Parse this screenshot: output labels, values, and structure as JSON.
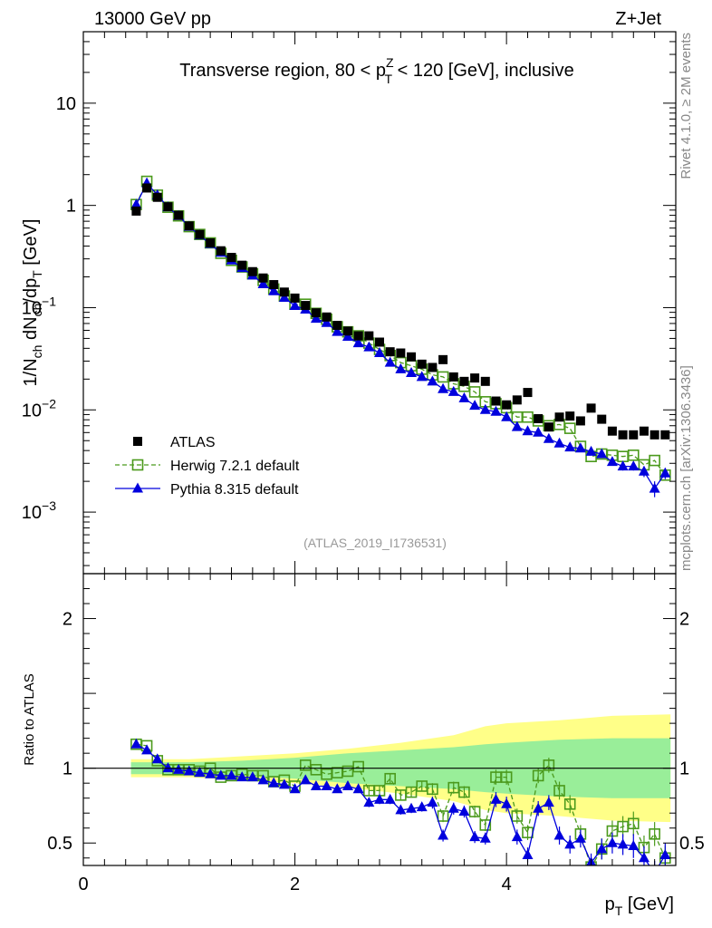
{
  "header": {
    "left": "13000 GeV pp",
    "right": "Z+Jet"
  },
  "side_labels": {
    "top": "Rivet 4.1.0, ≥ 2M events",
    "bottom": "mcplots.cern.ch [arXiv:1306.3436]"
  },
  "colors": {
    "atlas": "#000000",
    "herwig": "#4b9a1c",
    "pythia": "#0000dd",
    "band_inner": "#99ee99",
    "band_outer": "#ffff88",
    "watermark": "#999999"
  },
  "chart_data": [
    {
      "type": "scatter",
      "panel": "main",
      "title_parts": {
        "pre": "Transverse region, 80 < p",
        "sup": "Z",
        "sub": "T",
        "post": " < 120 [GeV], inclusive"
      },
      "ylabel_parts": [
        {
          "t": "1/N"
        },
        {
          "t": "ch",
          "s": "sub"
        },
        {
          "t": " dN"
        },
        {
          "t": "ch",
          "s": "sub"
        },
        {
          "t": "/dp"
        },
        {
          "t": "T",
          "s": "sub"
        },
        {
          "t": " [GeV]"
        }
      ],
      "yscale": "log",
      "ylim": [
        0.00025,
        50
      ],
      "xlim": [
        0,
        5.6
      ],
      "y_ticks": [
        {
          "v": 10,
          "base": "10",
          "exp": ""
        },
        {
          "v": 1,
          "base": "1",
          "exp": ""
        },
        {
          "v": 0.1,
          "base": "10",
          "exp": "−1"
        },
        {
          "v": 0.01,
          "base": "10",
          "exp": "−2"
        },
        {
          "v": 0.001,
          "base": "10",
          "exp": "−3"
        }
      ],
      "watermark": "(ATLAS_2019_I1736531)",
      "legend": {
        "position": "lower-left",
        "entries": [
          {
            "key": "atlas",
            "label": "ATLAS"
          },
          {
            "key": "herwig",
            "label": "Herwig 7.2.1 default"
          },
          {
            "key": "pythia",
            "label": "Pythia 8.315 default"
          }
        ]
      },
      "x": [
        0.5,
        0.6,
        0.7,
        0.8,
        0.9,
        1.0,
        1.1,
        1.2,
        1.3,
        1.4,
        1.5,
        1.6,
        1.7,
        1.8,
        1.9,
        2.0,
        2.1,
        2.2,
        2.3,
        2.4,
        2.5,
        2.6,
        2.7,
        2.8,
        2.9,
        3.0,
        3.1,
        3.2,
        3.3,
        3.4,
        3.5,
        3.6,
        3.7,
        3.8,
        3.9,
        4.0,
        4.1,
        4.2,
        4.3,
        4.4,
        4.5,
        4.6,
        4.7,
        4.8,
        4.9,
        5.0,
        5.1,
        5.2,
        5.3,
        5.4,
        5.5
      ],
      "series": [
        {
          "name": "ATLAS",
          "key": "atlas",
          "marker": "square-filled",
          "values": [
            0.88,
            1.48,
            1.2,
            0.97,
            0.8,
            0.63,
            0.52,
            0.43,
            0.36,
            0.31,
            0.26,
            0.225,
            0.195,
            0.168,
            0.142,
            0.124,
            0.105,
            0.089,
            0.081,
            0.067,
            0.059,
            0.053,
            0.053,
            0.046,
            0.037,
            0.036,
            0.033,
            0.028,
            0.026,
            0.031,
            0.021,
            0.019,
            0.0205,
            0.019,
            0.0122,
            0.0112,
            0.0125,
            0.0148,
            0.0082,
            0.0068,
            0.0085,
            0.0087,
            0.0078,
            0.0104,
            0.0081,
            0.0062,
            0.0057,
            0.0057,
            0.0062,
            0.0057,
            0.0057
          ]
        },
        {
          "name": "Herwig 7.2.1 default",
          "key": "herwig",
          "marker": "square-open",
          "line": "dashed",
          "values": [
            1.02,
            1.72,
            1.26,
            0.96,
            0.79,
            0.62,
            0.52,
            0.43,
            0.34,
            0.29,
            0.25,
            0.214,
            0.185,
            0.152,
            0.13,
            0.108,
            0.108,
            0.088,
            0.077,
            0.065,
            0.058,
            0.053,
            0.045,
            0.039,
            0.034,
            0.029,
            0.027,
            0.025,
            0.022,
            0.021,
            0.018,
            0.017,
            0.015,
            0.012,
            0.0115,
            0.0105,
            0.0085,
            0.0085,
            0.0078,
            0.007,
            0.0072,
            0.0066,
            0.0044,
            0.0035,
            0.0037,
            0.0036,
            0.0035,
            0.0036,
            0.0029,
            0.0032,
            0.0023
          ]
        },
        {
          "name": "Pythia 8.315 default",
          "key": "pythia",
          "marker": "triangle-filled",
          "line": "solid",
          "errors": [
            0,
            0,
            0,
            0,
            0,
            0,
            0,
            0,
            0,
            0,
            0,
            0,
            0,
            0,
            0,
            0,
            0,
            0,
            0,
            0,
            0,
            0,
            0,
            0,
            0,
            0,
            0,
            0,
            0,
            0,
            0,
            0,
            0,
            0,
            0,
            0,
            0,
            0,
            0,
            0,
            0,
            0,
            0,
            0,
            0.00025,
            0.00025,
            0.00025,
            0.00025,
            0.0003,
            0.0003,
            0.0003
          ],
          "values": [
            1.02,
            1.65,
            1.26,
            0.96,
            0.79,
            0.62,
            0.51,
            0.42,
            0.345,
            0.29,
            0.245,
            0.207,
            0.17,
            0.145,
            0.125,
            0.104,
            0.096,
            0.078,
            0.071,
            0.058,
            0.052,
            0.045,
            0.041,
            0.036,
            0.029,
            0.025,
            0.023,
            0.021,
            0.019,
            0.016,
            0.015,
            0.013,
            0.011,
            0.01,
            0.0096,
            0.0085,
            0.0068,
            0.0062,
            0.006,
            0.0052,
            0.0047,
            0.0043,
            0.0042,
            0.0039,
            0.0037,
            0.0031,
            0.0028,
            0.0028,
            0.0025,
            0.0017,
            0.0024
          ]
        }
      ]
    },
    {
      "type": "scatter",
      "panel": "ratio",
      "ylabel": "Ratio to ATLAS",
      "xlabel_parts": [
        {
          "t": "p"
        },
        {
          "t": "T",
          "s": "sub"
        },
        {
          "t": " [GeV]"
        }
      ],
      "ylim": [
        0.35,
        2.3
      ],
      "xlim": [
        0,
        5.6
      ],
      "reference_line": 1,
      "y_ticks": [
        {
          "v": 0.5,
          "label": "0.5"
        },
        {
          "v": 1,
          "label": "1"
        },
        {
          "v": 2,
          "label": "2"
        }
      ],
      "x_ticks": [
        {
          "v": 0,
          "label": "0"
        },
        {
          "v": 2,
          "label": "2"
        },
        {
          "v": 4,
          "label": "4"
        }
      ],
      "band_x": [
        0.45,
        1.0,
        1.5,
        2.0,
        2.5,
        3.0,
        3.5,
        3.8,
        4.0,
        4.5,
        5.0,
        5.55
      ],
      "band_inner_half": [
        0.04,
        0.04,
        0.05,
        0.07,
        0.1,
        0.12,
        0.14,
        0.16,
        0.17,
        0.19,
        0.2,
        0.2
      ],
      "band_outer_half": [
        0.06,
        0.06,
        0.08,
        0.1,
        0.13,
        0.17,
        0.22,
        0.28,
        0.3,
        0.32,
        0.35,
        0.36
      ],
      "series": [
        {
          "name": "Herwig 7.2.1 default",
          "key": "herwig",
          "marker": "square-open",
          "line": "dashed",
          "values": [
            1.16,
            1.15,
            1.05,
            0.99,
            0.99,
            0.99,
            0.98,
            1.0,
            0.94,
            0.95,
            0.96,
            0.95,
            0.95,
            0.91,
            0.92,
            0.88,
            1.02,
            0.99,
            0.96,
            0.97,
            0.98,
            1.01,
            0.85,
            0.85,
            0.93,
            0.82,
            0.84,
            0.88,
            0.86,
            0.68,
            0.87,
            0.84,
            0.71,
            0.62,
            0.94,
            0.94,
            0.68,
            0.57,
            0.95,
            1.02,
            0.85,
            0.76,
            0.56,
            0.34,
            0.46,
            0.58,
            0.61,
            0.63,
            0.47,
            0.56,
            0.4
          ],
          "errors": [
            0,
            0,
            0,
            0,
            0,
            0,
            0,
            0,
            0,
            0,
            0,
            0,
            0,
            0,
            0,
            0,
            0,
            0,
            0,
            0,
            0,
            0,
            0.03,
            0.03,
            0.03,
            0.03,
            0.03,
            0.03,
            0.04,
            0.04,
            0.04,
            0.04,
            0.04,
            0.04,
            0.05,
            0.05,
            0.05,
            0.05,
            0.05,
            0.05,
            0.06,
            0.06,
            0.06,
            0.06,
            0.07,
            0.07,
            0.07,
            0.08,
            0.08,
            0.08,
            0.08
          ]
        },
        {
          "name": "Pythia 8.315 default",
          "key": "pythia",
          "marker": "triangle-filled",
          "line": "solid",
          "values": [
            1.16,
            1.12,
            1.06,
            1.0,
            0.99,
            0.98,
            0.97,
            0.96,
            0.95,
            0.95,
            0.94,
            0.94,
            0.92,
            0.9,
            0.89,
            0.86,
            0.92,
            0.88,
            0.88,
            0.86,
            0.88,
            0.86,
            0.77,
            0.79,
            0.79,
            0.72,
            0.73,
            0.74,
            0.77,
            0.55,
            0.73,
            0.71,
            0.54,
            0.53,
            0.79,
            0.76,
            0.54,
            0.42,
            0.73,
            0.77,
            0.55,
            0.49,
            0.53,
            0.37,
            0.46,
            0.5,
            0.49,
            0.48,
            0.4,
            0.3,
            0.42
          ],
          "errors": [
            0,
            0,
            0,
            0,
            0,
            0,
            0,
            0,
            0,
            0,
            0,
            0,
            0,
            0,
            0,
            0,
            0,
            0,
            0,
            0,
            0,
            0,
            0.03,
            0.03,
            0.03,
            0.03,
            0.03,
            0.03,
            0.04,
            0.04,
            0.04,
            0.04,
            0.04,
            0.04,
            0.05,
            0.05,
            0.05,
            0.05,
            0.05,
            0.05,
            0.06,
            0.06,
            0.06,
            0.06,
            0.07,
            0.07,
            0.07,
            0.08,
            0.08,
            0.08,
            0.08
          ]
        }
      ]
    }
  ]
}
